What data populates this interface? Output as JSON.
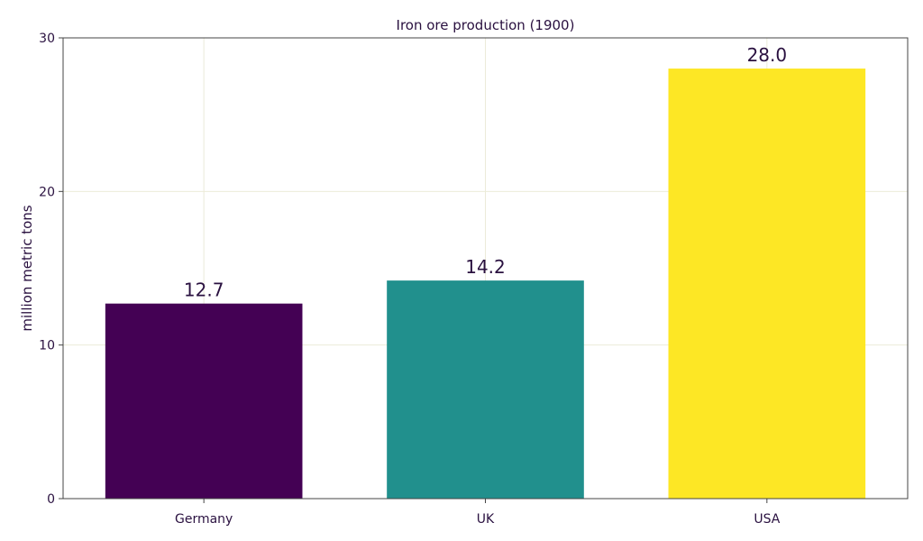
{
  "chart_data": {
    "type": "bar",
    "title": "Iron ore production (1900)",
    "xlabel": "",
    "ylabel": "million metric tons",
    "categories": [
      "Germany",
      "UK",
      "USA"
    ],
    "values": [
      12.7,
      14.2,
      28.0
    ],
    "value_labels": [
      "12.7",
      "14.2",
      "28.0"
    ],
    "colors": [
      "#440154",
      "#21908d",
      "#fde725"
    ],
    "ylim": [
      0,
      30
    ],
    "yticks": [
      0,
      10,
      20,
      30
    ],
    "ytick_labels": [
      "0",
      "10",
      "20",
      "30"
    ],
    "grid": true,
    "legend": "none"
  }
}
